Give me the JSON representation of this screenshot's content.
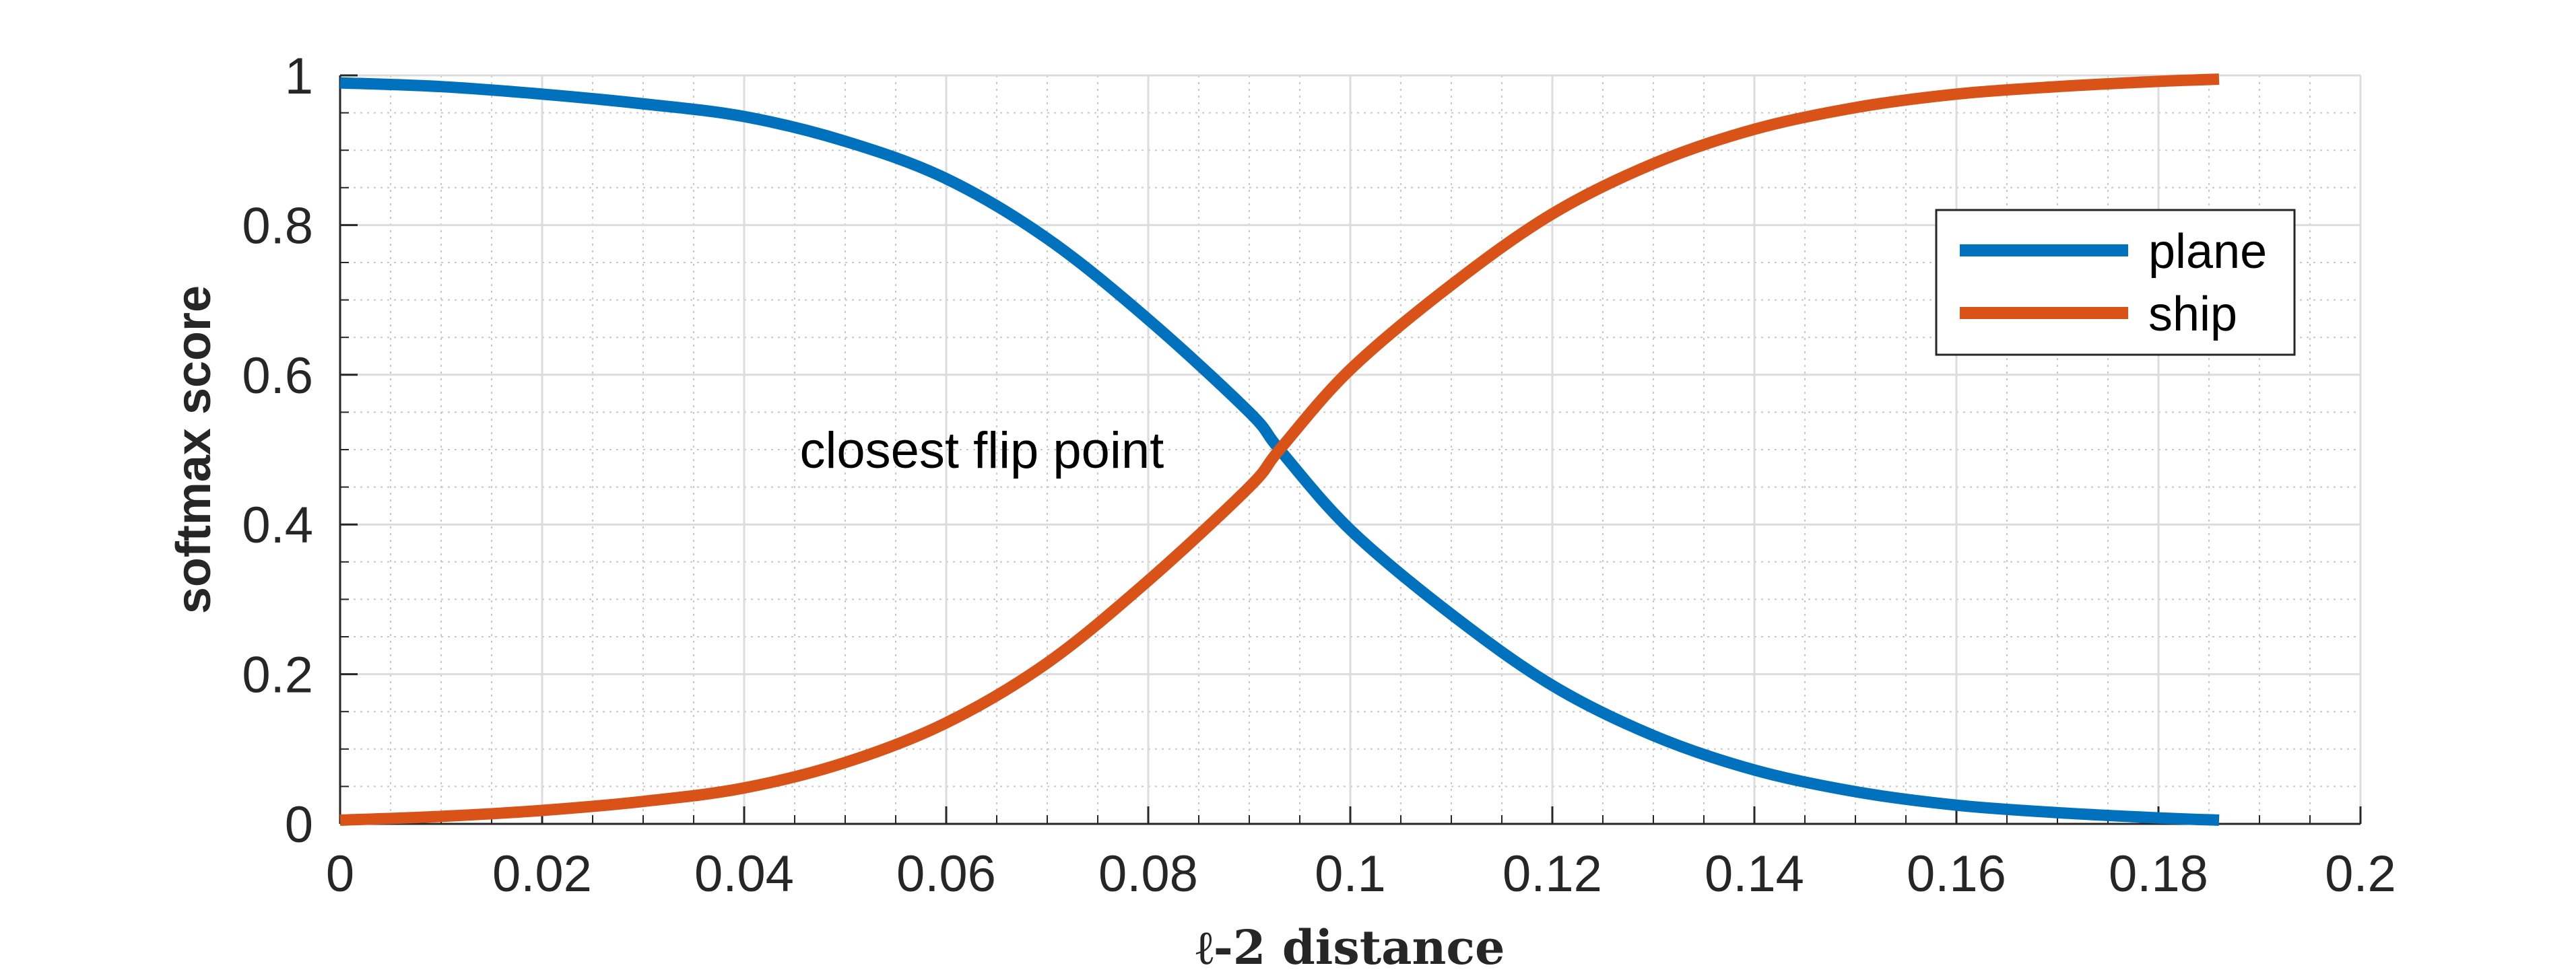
{
  "chart_data": {
    "type": "line",
    "title": "",
    "xlabel": "ℓ-2 distance",
    "ylabel": "softmax score",
    "xlim": [
      0,
      0.2
    ],
    "ylim": [
      0,
      1
    ],
    "x_ticks": [
      "0",
      "0.02",
      "0.04",
      "0.06",
      "0.08",
      "0.1",
      "0.12",
      "0.14",
      "0.16",
      "0.18",
      "0.2"
    ],
    "y_ticks": [
      "0",
      "0.2",
      "0.4",
      "0.6",
      "0.8",
      "1"
    ],
    "grid": true,
    "minor_grid": true,
    "legend_position": "top-right",
    "series": [
      {
        "name": "plane",
        "color": "#0072BD",
        "x": [
          0,
          0.01,
          0.02,
          0.03,
          0.04,
          0.05,
          0.06,
          0.07,
          0.08,
          0.09,
          0.093,
          0.1,
          0.11,
          0.12,
          0.13,
          0.14,
          0.15,
          0.16,
          0.17,
          0.18,
          0.186
        ],
        "y": [
          0.99,
          0.985,
          0.975,
          0.962,
          0.945,
          0.912,
          0.862,
          0.782,
          0.674,
          0.55,
          0.5,
          0.393,
          0.28,
          0.185,
          0.118,
          0.072,
          0.043,
          0.025,
          0.015,
          0.008,
          0.005
        ]
      },
      {
        "name": "ship",
        "color": "#D95319",
        "x": [
          0,
          0.01,
          0.02,
          0.03,
          0.04,
          0.05,
          0.06,
          0.07,
          0.08,
          0.09,
          0.093,
          0.1,
          0.11,
          0.12,
          0.13,
          0.14,
          0.15,
          0.16,
          0.17,
          0.18,
          0.186
        ],
        "y": [
          0.005,
          0.01,
          0.018,
          0.03,
          0.048,
          0.082,
          0.135,
          0.215,
          0.325,
          0.45,
          0.5,
          0.607,
          0.72,
          0.815,
          0.882,
          0.928,
          0.957,
          0.975,
          0.985,
          0.992,
          0.995
        ]
      }
    ],
    "annotations": [
      {
        "text": "closest flip point",
        "x": 0.0455,
        "y": 0.5
      }
    ]
  }
}
